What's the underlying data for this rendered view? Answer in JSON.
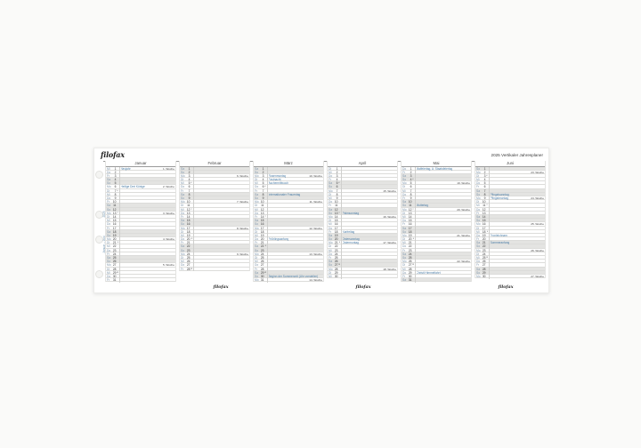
{
  "page": {
    "brand": "filofax",
    "title": "2025 Vertikaler Jahresplaner",
    "side_labels": [
      "2025",
      "Januar – Juni"
    ],
    "footer_logos": [
      "filofax",
      "filofax",
      "filofax"
    ]
  },
  "colors": {
    "event_blue": "#4a7ca6",
    "weekday_blue": "#7d95ab",
    "weekend_gray": "#e4e4e2"
  },
  "legend": {
    "day_fields": [
      "weekday",
      "date",
      "event",
      "week_label",
      "moon_phase"
    ]
  },
  "months": [
    {
      "name": "Januar",
      "days": [
        [
          "Mi",
          1,
          "Neujahr",
          "1. Woche",
          ""
        ],
        [
          "Do",
          2,
          "",
          "",
          ""
        ],
        [
          "Fr",
          3,
          "",
          "",
          ""
        ],
        [
          "Sa",
          4,
          "",
          "",
          ""
        ],
        [
          "So",
          5,
          "",
          "",
          ""
        ],
        [
          "Mo",
          6,
          "Heilige Drei Könige",
          "2. Woche",
          ""
        ],
        [
          "Di",
          7,
          "",
          "",
          "◐"
        ],
        [
          "Mi",
          8,
          "",
          "",
          ""
        ],
        [
          "Do",
          9,
          "",
          "",
          ""
        ],
        [
          "Fr",
          10,
          "",
          "",
          ""
        ],
        [
          "Sa",
          11,
          "",
          "",
          ""
        ],
        [
          "So",
          12,
          "",
          "",
          ""
        ],
        [
          "Mo",
          13,
          "",
          "3. Woche",
          "○"
        ],
        [
          "Di",
          14,
          "",
          "",
          ""
        ],
        [
          "Mi",
          15,
          "",
          "",
          ""
        ],
        [
          "Do",
          16,
          "",
          "",
          ""
        ],
        [
          "Fr",
          17,
          "",
          "",
          ""
        ],
        [
          "Sa",
          18,
          "",
          "",
          ""
        ],
        [
          "So",
          19,
          "",
          "",
          ""
        ],
        [
          "Mo",
          20,
          "",
          "4. Woche",
          ""
        ],
        [
          "Di",
          21,
          "",
          "",
          "◑"
        ],
        [
          "Mi",
          22,
          "",
          "",
          ""
        ],
        [
          "Do",
          23,
          "",
          "",
          ""
        ],
        [
          "Fr",
          24,
          "",
          "",
          ""
        ],
        [
          "Sa",
          25,
          "",
          "",
          ""
        ],
        [
          "So",
          26,
          "",
          "",
          ""
        ],
        [
          "Mo",
          27,
          "",
          "5. Woche",
          ""
        ],
        [
          "Di",
          28,
          "",
          "",
          ""
        ],
        [
          "Mi",
          29,
          "",
          "",
          "●"
        ],
        [
          "Do",
          30,
          "",
          "",
          ""
        ],
        [
          "Fr",
          31,
          "",
          "",
          ""
        ]
      ]
    },
    {
      "name": "Februar",
      "days": [
        [
          "Sa",
          1,
          "",
          "",
          ""
        ],
        [
          "So",
          2,
          "",
          "",
          ""
        ],
        [
          "Mo",
          3,
          "",
          "6. Woche",
          ""
        ],
        [
          "Di",
          4,
          "",
          "",
          ""
        ],
        [
          "Mi",
          5,
          "",
          "",
          "◐"
        ],
        [
          "Do",
          6,
          "",
          "",
          ""
        ],
        [
          "Fr",
          7,
          "",
          "",
          ""
        ],
        [
          "Sa",
          8,
          "",
          "",
          ""
        ],
        [
          "So",
          9,
          "",
          "",
          ""
        ],
        [
          "Mo",
          10,
          "",
          "7. Woche",
          ""
        ],
        [
          "Di",
          11,
          "",
          "",
          ""
        ],
        [
          "Mi",
          12,
          "",
          "",
          "○"
        ],
        [
          "Do",
          13,
          "",
          "",
          ""
        ],
        [
          "Fr",
          14,
          "",
          "",
          ""
        ],
        [
          "Sa",
          15,
          "",
          "",
          ""
        ],
        [
          "So",
          16,
          "",
          "",
          ""
        ],
        [
          "Mo",
          17,
          "",
          "8. Woche",
          ""
        ],
        [
          "Di",
          18,
          "",
          "",
          ""
        ],
        [
          "Mi",
          19,
          "",
          "",
          ""
        ],
        [
          "Do",
          20,
          "",
          "",
          "◑"
        ],
        [
          "Fr",
          21,
          "",
          "",
          ""
        ],
        [
          "Sa",
          22,
          "",
          "",
          ""
        ],
        [
          "So",
          23,
          "",
          "",
          ""
        ],
        [
          "Mo",
          24,
          "",
          "9. Woche",
          ""
        ],
        [
          "Di",
          25,
          "",
          "",
          ""
        ],
        [
          "Mi",
          26,
          "",
          "",
          ""
        ],
        [
          "Do",
          27,
          "",
          "",
          ""
        ],
        [
          "Fr",
          28,
          "",
          "",
          "●"
        ]
      ]
    },
    {
      "name": "März",
      "days": [
        [
          "Sa",
          1,
          "",
          "",
          ""
        ],
        [
          "So",
          2,
          "",
          "",
          ""
        ],
        [
          "Mo",
          3,
          "Rosenmontag",
          "10. Woche",
          ""
        ],
        [
          "Di",
          4,
          "Fastnacht",
          "",
          ""
        ],
        [
          "Mi",
          5,
          "Aschermittwoch",
          "",
          ""
        ],
        [
          "Do",
          6,
          "",
          "",
          "◐"
        ],
        [
          "Fr",
          7,
          "",
          "",
          ""
        ],
        [
          "Sa",
          8,
          "Internationaler Frauentag",
          "",
          ""
        ],
        [
          "So",
          9,
          "",
          "",
          ""
        ],
        [
          "Mo",
          10,
          "",
          "11. Woche",
          ""
        ],
        [
          "Di",
          11,
          "",
          "",
          ""
        ],
        [
          "Mi",
          12,
          "",
          "",
          ""
        ],
        [
          "Do",
          13,
          "",
          "",
          ""
        ],
        [
          "Fr",
          14,
          "",
          "",
          "○"
        ],
        [
          "Sa",
          15,
          "",
          "",
          ""
        ],
        [
          "So",
          16,
          "",
          "",
          ""
        ],
        [
          "Mo",
          17,
          "",
          "12. Woche",
          ""
        ],
        [
          "Di",
          18,
          "",
          "",
          ""
        ],
        [
          "Mi",
          19,
          "",
          "",
          ""
        ],
        [
          "Do",
          20,
          "Frühlingsanfang",
          "",
          ""
        ],
        [
          "Fr",
          21,
          "",
          "",
          ""
        ],
        [
          "Sa",
          22,
          "",
          "",
          "◑"
        ],
        [
          "So",
          23,
          "",
          "",
          ""
        ],
        [
          "Mo",
          24,
          "",
          "13. Woche",
          ""
        ],
        [
          "Di",
          25,
          "",
          "",
          ""
        ],
        [
          "Mi",
          26,
          "",
          "",
          ""
        ],
        [
          "Do",
          27,
          "",
          "",
          ""
        ],
        [
          "Fr",
          28,
          "",
          "",
          ""
        ],
        [
          "Sa",
          29,
          "",
          "",
          "●"
        ],
        [
          "So",
          30,
          "Beginn der Sommerzeit (Uhr vorstellen)",
          "",
          ""
        ],
        [
          "Mo",
          31,
          "",
          "14. Woche",
          ""
        ]
      ]
    },
    {
      "name": "April",
      "days": [
        [
          "Di",
          1,
          "",
          "",
          ""
        ],
        [
          "Mi",
          2,
          "",
          "",
          ""
        ],
        [
          "Do",
          3,
          "",
          "",
          ""
        ],
        [
          "Fr",
          4,
          "",
          "",
          ""
        ],
        [
          "Sa",
          5,
          "",
          "",
          "◐"
        ],
        [
          "So",
          6,
          "",
          "",
          ""
        ],
        [
          "Mo",
          7,
          "",
          "15. Woche",
          ""
        ],
        [
          "Di",
          8,
          "",
          "",
          ""
        ],
        [
          "Mi",
          9,
          "",
          "",
          ""
        ],
        [
          "Do",
          10,
          "",
          "",
          ""
        ],
        [
          "Fr",
          11,
          "",
          "",
          ""
        ],
        [
          "Sa",
          12,
          "",
          "",
          ""
        ],
        [
          "So",
          13,
          "Palmsonntag",
          "",
          "○"
        ],
        [
          "Mo",
          14,
          "",
          "16. Woche",
          ""
        ],
        [
          "Di",
          15,
          "",
          "",
          ""
        ],
        [
          "Mi",
          16,
          "",
          "",
          ""
        ],
        [
          "Do",
          17,
          "",
          "",
          ""
        ],
        [
          "Fr",
          18,
          "Karfreitag",
          "",
          ""
        ],
        [
          "Sa",
          19,
          "",
          "",
          ""
        ],
        [
          "So",
          20,
          "Ostersonntag",
          "",
          ""
        ],
        [
          "Mo",
          21,
          "Ostermontag",
          "17. Woche",
          "◑"
        ],
        [
          "Di",
          22,
          "",
          "",
          ""
        ],
        [
          "Mi",
          23,
          "",
          "",
          ""
        ],
        [
          "Do",
          24,
          "",
          "",
          ""
        ],
        [
          "Fr",
          25,
          "",
          "",
          ""
        ],
        [
          "Sa",
          26,
          "",
          "",
          ""
        ],
        [
          "So",
          27,
          "",
          "",
          "●"
        ],
        [
          "Mo",
          28,
          "",
          "18. Woche",
          ""
        ],
        [
          "Di",
          29,
          "",
          "",
          ""
        ],
        [
          "Mi",
          30,
          "",
          "",
          ""
        ]
      ]
    },
    {
      "name": "Mai",
      "days": [
        [
          "Do",
          1,
          "Maifeiertag, A: Staatsfeiertag",
          "",
          ""
        ],
        [
          "Fr",
          2,
          "",
          "",
          ""
        ],
        [
          "Sa",
          3,
          "",
          "",
          ""
        ],
        [
          "So",
          4,
          "",
          "",
          "◐"
        ],
        [
          "Mo",
          5,
          "",
          "19. Woche",
          ""
        ],
        [
          "Di",
          6,
          "",
          "",
          ""
        ],
        [
          "Mi",
          7,
          "",
          "",
          ""
        ],
        [
          "Do",
          8,
          "",
          "",
          ""
        ],
        [
          "Fr",
          9,
          "",
          "",
          ""
        ],
        [
          "Sa",
          10,
          "",
          "",
          ""
        ],
        [
          "So",
          11,
          "Muttertag",
          "",
          ""
        ],
        [
          "Mo",
          12,
          "",
          "20. Woche",
          "○"
        ],
        [
          "Di",
          13,
          "",
          "",
          ""
        ],
        [
          "Mi",
          14,
          "",
          "",
          ""
        ],
        [
          "Do",
          15,
          "",
          "",
          ""
        ],
        [
          "Fr",
          16,
          "",
          "",
          ""
        ],
        [
          "Sa",
          17,
          "",
          "",
          ""
        ],
        [
          "So",
          18,
          "",
          "",
          ""
        ],
        [
          "Mo",
          19,
          "",
          "21. Woche",
          ""
        ],
        [
          "Di",
          20,
          "",
          "",
          "◑"
        ],
        [
          "Mi",
          21,
          "",
          "",
          ""
        ],
        [
          "Do",
          22,
          "",
          "",
          ""
        ],
        [
          "Fr",
          23,
          "",
          "",
          ""
        ],
        [
          "Sa",
          24,
          "",
          "",
          ""
        ],
        [
          "So",
          25,
          "",
          "",
          ""
        ],
        [
          "Mo",
          26,
          "",
          "22. Woche",
          ""
        ],
        [
          "Di",
          27,
          "",
          "",
          "●"
        ],
        [
          "Mi",
          28,
          "",
          "",
          ""
        ],
        [
          "Do",
          29,
          "Christi Himmelfahrt",
          "",
          ""
        ],
        [
          "Fr",
          30,
          "",
          "",
          ""
        ],
        [
          "Sa",
          31,
          "",
          "",
          ""
        ]
      ]
    },
    {
      "name": "Juni",
      "days": [
        [
          "So",
          1,
          "",
          "",
          ""
        ],
        [
          "Mo",
          2,
          "",
          "23. Woche",
          ""
        ],
        [
          "Di",
          3,
          "",
          "",
          "◐"
        ],
        [
          "Mi",
          4,
          "",
          "",
          ""
        ],
        [
          "Do",
          5,
          "",
          "",
          ""
        ],
        [
          "Fr",
          6,
          "",
          "",
          ""
        ],
        [
          "Sa",
          7,
          "",
          "",
          ""
        ],
        [
          "So",
          8,
          "Pfingstsonntag",
          "",
          ""
        ],
        [
          "Mo",
          9,
          "Pfingstmontag",
          "24. Woche",
          ""
        ],
        [
          "Di",
          10,
          "",
          "",
          ""
        ],
        [
          "Mi",
          11,
          "",
          "",
          "○"
        ],
        [
          "Do",
          12,
          "",
          "",
          ""
        ],
        [
          "Fr",
          13,
          "",
          "",
          ""
        ],
        [
          "Sa",
          14,
          "",
          "",
          ""
        ],
        [
          "So",
          15,
          "",
          "",
          ""
        ],
        [
          "Mo",
          16,
          "",
          "25. Woche",
          ""
        ],
        [
          "Di",
          17,
          "",
          "",
          ""
        ],
        [
          "Mi",
          18,
          "",
          "",
          "◑"
        ],
        [
          "Do",
          19,
          "Fronleichnam",
          "",
          ""
        ],
        [
          "Fr",
          20,
          "",
          "",
          ""
        ],
        [
          "Sa",
          21,
          "Sommeranfang",
          "",
          ""
        ],
        [
          "So",
          22,
          "",
          "",
          ""
        ],
        [
          "Mo",
          23,
          "",
          "26. Woche",
          ""
        ],
        [
          "Di",
          24,
          "",
          "",
          ""
        ],
        [
          "Mi",
          25,
          "",
          "",
          "●"
        ],
        [
          "Do",
          26,
          "",
          "",
          ""
        ],
        [
          "Fr",
          27,
          "",
          "",
          ""
        ],
        [
          "Sa",
          28,
          "",
          "",
          ""
        ],
        [
          "So",
          29,
          "",
          "",
          ""
        ],
        [
          "Mo",
          30,
          "",
          "27. Woche",
          ""
        ]
      ]
    }
  ]
}
